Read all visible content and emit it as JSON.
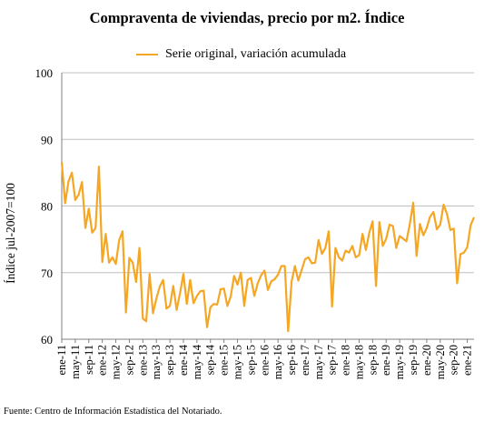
{
  "chart_data": {
    "type": "line",
    "title": "Compraventa de viviendas, precio por m2. Índice",
    "ylabel": "Índice jul-2007=100",
    "xlabel": "",
    "ylim": [
      60,
      100
    ],
    "yticks": [
      60,
      70,
      80,
      90,
      100
    ],
    "grid": "horizontal",
    "legend_position": "top-center",
    "series": [
      {
        "name": "Serie original, variación acumulada",
        "color": "#F5A623",
        "values": [
          86.6,
          80.4,
          83.7,
          85.0,
          80.9,
          81.7,
          83.6,
          76.7,
          79.6,
          76.0,
          76.7,
          85.9,
          71.6,
          75.8,
          71.5,
          72.3,
          71.3,
          74.9,
          76.2,
          64.0,
          72.2,
          71.5,
          68.6,
          73.7,
          63.1,
          62.7,
          69.8,
          63.9,
          66.1,
          67.9,
          68.9,
          64.6,
          65.0,
          68.0,
          64.4,
          66.9,
          69.8,
          65.3,
          68.9,
          65.4,
          66.5,
          67.2,
          67.3,
          61.8,
          64.8,
          65.3,
          65.2,
          67.5,
          67.6,
          65.0,
          66.4,
          69.5,
          68.2,
          70.0,
          65.0,
          68.9,
          69.2,
          66.5,
          68.4,
          69.6,
          70.3,
          67.4,
          68.7,
          69.0,
          69.7,
          71.0,
          71.0,
          61.2,
          68.6,
          71.0,
          68.8,
          70.4,
          72.0,
          72.3,
          71.4,
          71.5,
          74.9,
          72.8,
          73.7,
          76.2,
          64.9,
          73.7,
          72.3,
          71.8,
          73.3,
          73.0,
          74.0,
          72.3,
          72.6,
          75.8,
          73.4,
          76.0,
          77.7,
          68.0,
          77.6,
          74.0,
          75.1,
          77.2,
          77.0,
          73.7,
          75.5,
          75.1,
          74.7,
          77.3,
          80.5,
          72.5,
          77.3,
          75.6,
          76.7,
          78.4,
          79.1,
          76.5,
          77.2,
          80.2,
          78.8,
          76.4,
          76.6,
          68.4,
          72.8,
          73.0,
          73.8,
          77.1,
          78.3
        ]
      }
    ],
    "x_tick_labels": [
      "ene-11",
      "may-11",
      "sep-11",
      "ene-12",
      "may-12",
      "sep-12",
      "ene-13",
      "may-13",
      "sep-13",
      "ene-14",
      "may-14",
      "sep-14",
      "ene-15",
      "may-15",
      "sep-15",
      "ene-16",
      "may-16",
      "sep-16",
      "ene-17",
      "may-17",
      "sep-17",
      "ene-18",
      "may-18",
      "sep-18",
      "ene-19",
      "may-19",
      "sep-19",
      "ene-20",
      "may-20",
      "sep-20",
      "ene-21"
    ]
  },
  "source_note": "Fuente: Centro de Información Estadística del Notariado."
}
